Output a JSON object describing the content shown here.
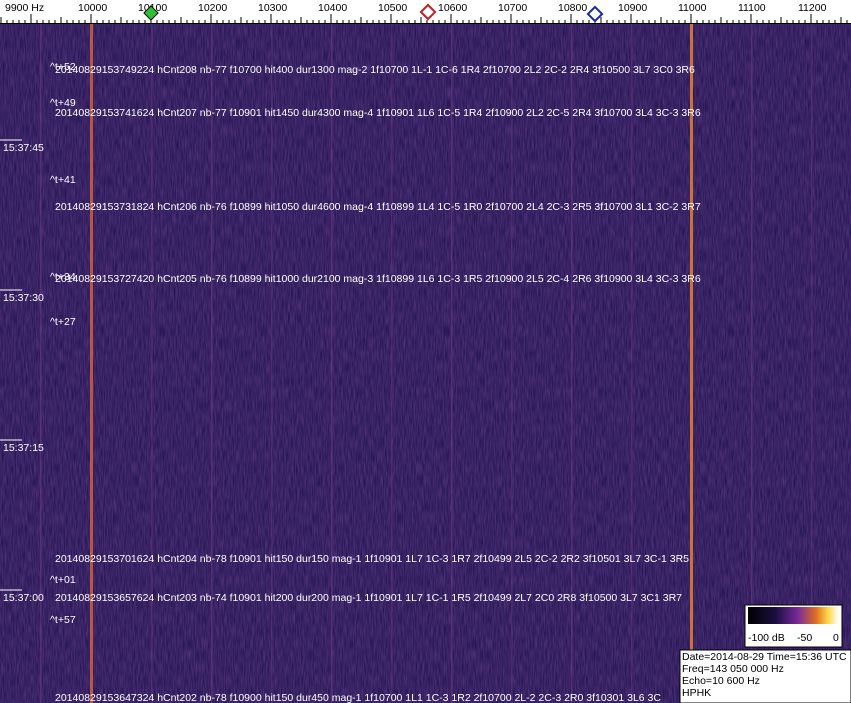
{
  "axis": {
    "labels": [
      "9900 Hz",
      "10000",
      "10100",
      "10200",
      "10300",
      "10400",
      "10500",
      "10600",
      "10700",
      "10800",
      "10900",
      "11000",
      "11100",
      "11200"
    ]
  },
  "time_labels": [
    "15:37:45",
    "15:37:30",
    "15:37:15",
    "15:37:00"
  ],
  "offsets": [
    "^t+52",
    "^t+49",
    "^t+41",
    "^t+34",
    "^t+27",
    "^t+01",
    "^t+57"
  ],
  "detections": [
    "20140829153749224 hCnt208 nb-77 f10700 hit400 dur1300 mag-2 1f10700 1L-1 1C-6 1R4 2f10700 2L2 2C-2 2R4 3f10500 3L7 3C0 3R6",
    "20140829153741624 hCnt207 nb-77 f10901 hit1450 dur4300 mag-4 1f10901 1L6 1C-5 1R4 2f10900 2L2 2C-5 2R4 3f10700 3L4 3C-3 3R6",
    "20140829153731824 hCnt206 nb-76 f10899 hit1050 dur4600 mag-4 1f10899 1L4 1C-5 1R0 2f10700 2L4 2C-3 2R5 3f10700 3L1 3C-2 3R7",
    "20140829153727420 hCnt205 nb-76 f10899 hit1000 dur2100 mag-3 1f10899 1L6 1C-3 1R5 2f10900 2L5 2C-4 2R6 3f10900 3L4 3C-3 3R6",
    "20140829153701624 hCnt204 nb-78 f10901 hit150 dur150 mag-1 1f10901 1L7 1C-3 1R7 2f10499 2L5 2C-2 2R2 3f10501 3L7 3C-1 3R5",
    "20140829153657624 hCnt203 nb-74 f10901 hit200 dur200 mag-1 1f10901 1L7 1C-1 1R5 2f10499 2L7 2C0 2R8 3f10500 3L7 3C1 3R7",
    "20140829153647324 hCnt202 nb-78 f10900 hit150 dur450 mag-1 1f10700 1L1 1C-3 1R2 2f10700 2L-2 2C-3 2R0 3f10301 3L6 3C"
  ],
  "color_scale": {
    "labels": [
      "-100 dB",
      "-50",
      "0"
    ]
  },
  "info": [
    "Date=2014-08-29 Time=15:36 UTC",
    "Freq=143 050 000 Hz",
    "Echo=10 600 Hz",
    "HPHK"
  ]
}
